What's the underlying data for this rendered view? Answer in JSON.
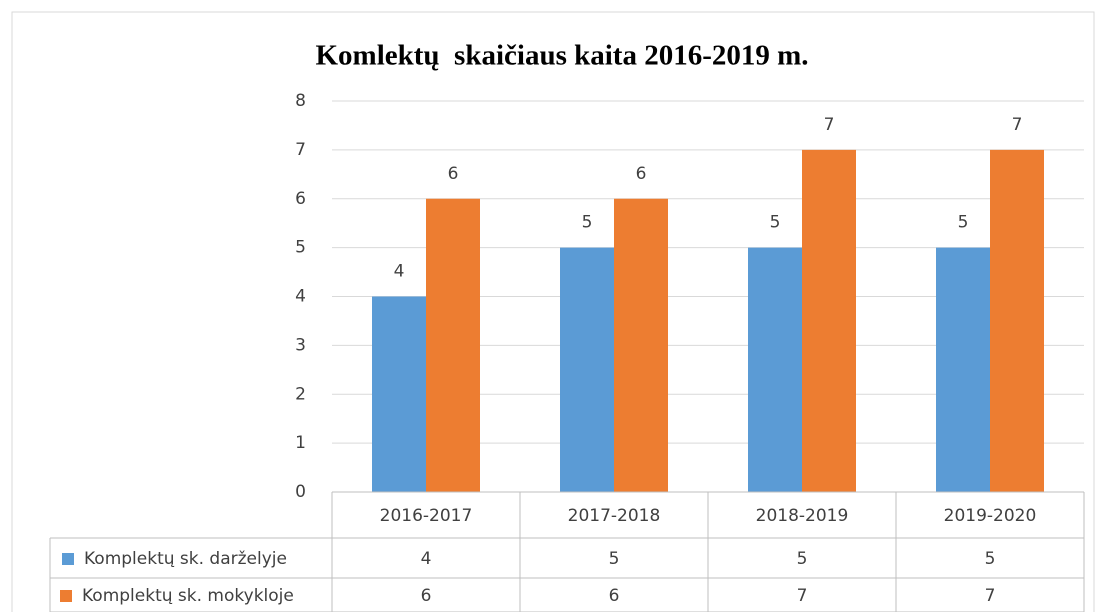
{
  "chart_data": {
    "type": "bar",
    "title": "Komlektų  skaičiaus kaita 2016-2019 m.",
    "categories": [
      "2016-2017",
      "2017-2018",
      "2018-2019",
      "2019-2020"
    ],
    "series": [
      {
        "name": "Komplektų sk. darželyje",
        "color": "#5b9bd5",
        "values": [
          4,
          5,
          5,
          5
        ]
      },
      {
        "name": "Komplektų sk. mokykloje",
        "color": "#ed7d31",
        "values": [
          6,
          6,
          7,
          7
        ]
      }
    ],
    "ylim": [
      0,
      8
    ],
    "yticks": [
      0,
      1,
      2,
      3,
      4,
      5,
      6,
      7,
      8
    ],
    "grid": true,
    "data_table": true
  }
}
